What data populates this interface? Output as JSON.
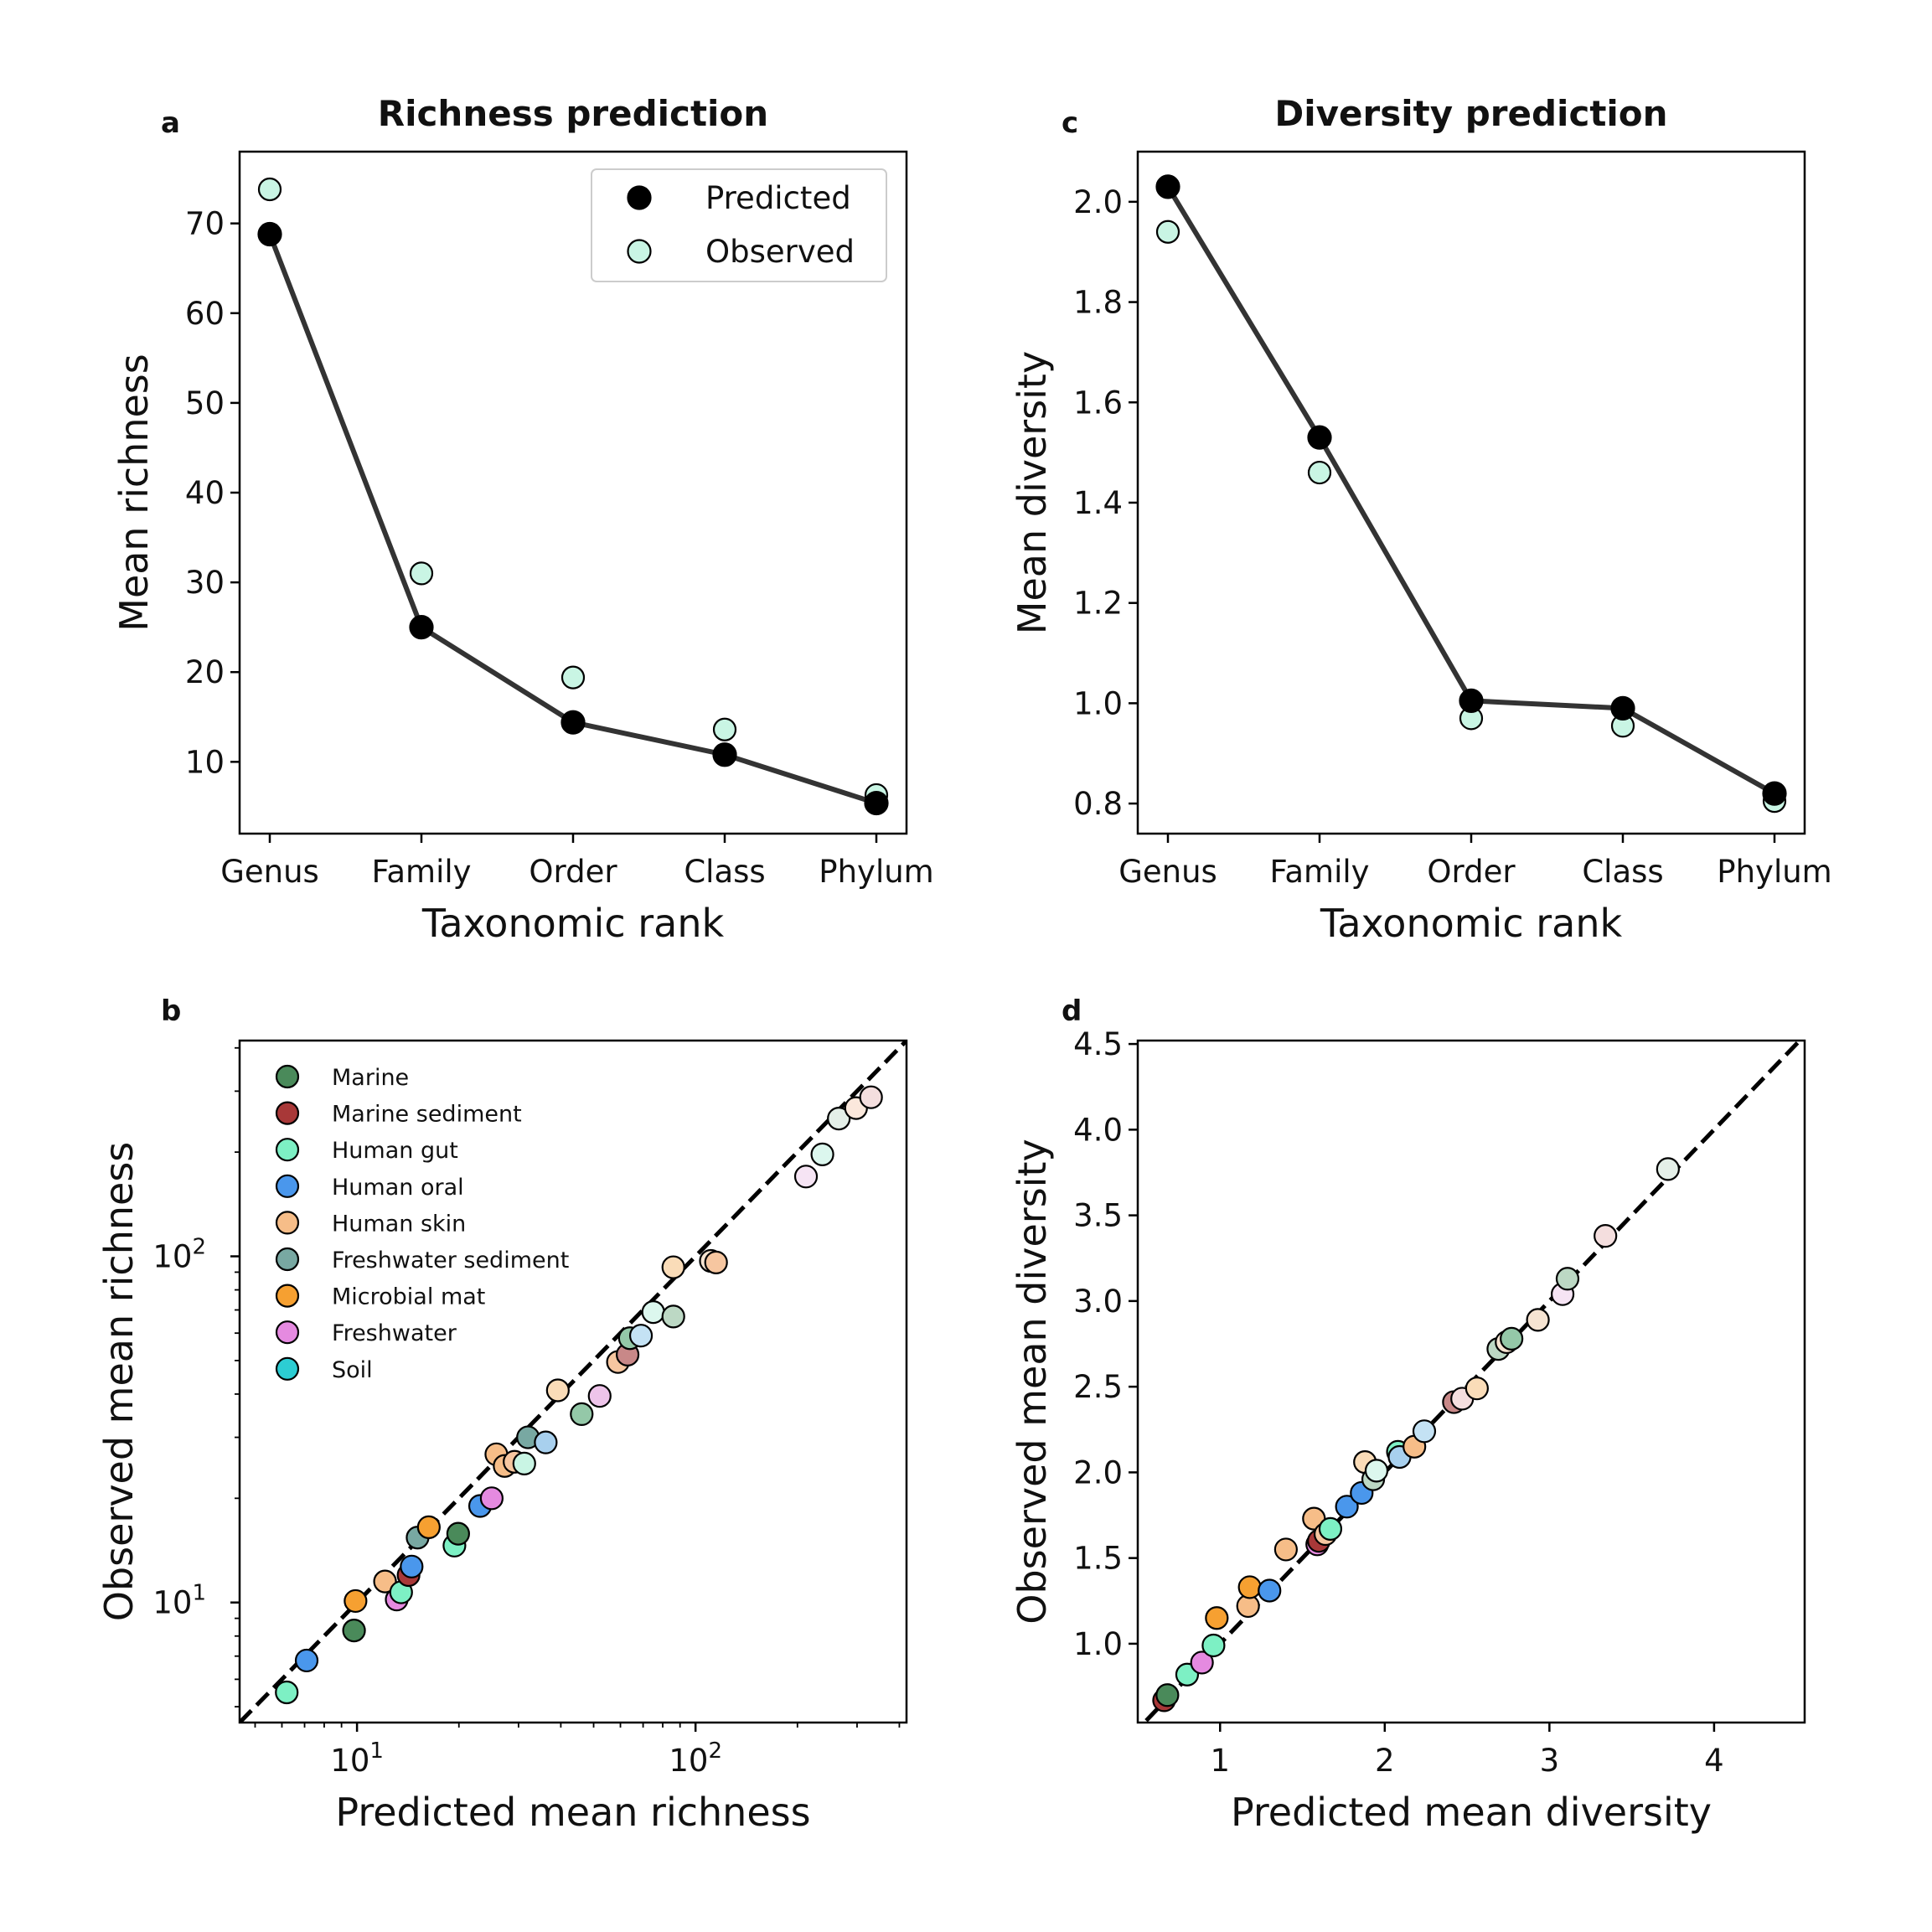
{
  "chart_data": [
    {
      "id": "a",
      "panel_label": "a",
      "type": "line",
      "title": "Richness prediction",
      "xlabel": "Taxonomic rank",
      "ylabel": "Mean richness",
      "categories": [
        "Genus",
        "Family",
        "Order",
        "Class",
        "Phylum"
      ],
      "ylim": [
        2,
        78
      ],
      "yticks": [
        10,
        20,
        30,
        40,
        50,
        60,
        70
      ],
      "grid": false,
      "legend_position": "top-right",
      "series": [
        {
          "name": "Predicted",
          "values": [
            68.8,
            25.0,
            14.4,
            10.8,
            5.4
          ],
          "color": "#000000",
          "line": true
        },
        {
          "name": "Observed",
          "values": [
            73.8,
            31.0,
            19.4,
            13.6,
            6.3
          ],
          "color": "#c9f5e4",
          "line": false
        }
      ]
    },
    {
      "id": "c",
      "panel_label": "c",
      "type": "line",
      "title": "Diversity prediction",
      "xlabel": "Taxonomic rank",
      "ylabel": "Mean diversity",
      "categories": [
        "Genus",
        "Family",
        "Order",
        "Class",
        "Phylum"
      ],
      "ylim": [
        0.74,
        2.1
      ],
      "yticks": [
        0.8,
        1.0,
        1.2,
        1.4,
        1.6,
        1.8,
        2.0
      ],
      "grid": false,
      "series": [
        {
          "name": "Predicted",
          "values": [
            2.03,
            1.53,
            1.005,
            0.99,
            0.82
          ],
          "color": "#000000",
          "line": true
        },
        {
          "name": "Observed",
          "values": [
            1.94,
            1.46,
            0.97,
            0.955,
            0.805
          ],
          "color": "#c9f5e4",
          "line": false
        }
      ]
    },
    {
      "id": "b",
      "panel_label": "b",
      "type": "scatter",
      "xlabel": "Predicted mean richness",
      "ylabel": "Observed mean richness",
      "xscale": "log",
      "yscale": "log",
      "xlim": [
        4.5,
        420
      ],
      "ylim": [
        4.5,
        420
      ],
      "xticks": [
        {
          "value": 10,
          "base": "10",
          "exp": "1"
        },
        {
          "value": 100,
          "base": "10",
          "exp": "2"
        }
      ],
      "yticks": [
        {
          "value": 10,
          "base": "10",
          "exp": "1"
        },
        {
          "value": 100,
          "base": "10",
          "exp": "2"
        }
      ],
      "reference_line": "y = x (dashed)",
      "grid": false,
      "legend_position": "top-left",
      "legend": [
        {
          "name": "Marine",
          "color": "#4a8a5a"
        },
        {
          "name": "Marine sediment",
          "color": "#a83838"
        },
        {
          "name": "Human gut",
          "color": "#7df0c4"
        },
        {
          "name": "Human oral",
          "color": "#4a97ec"
        },
        {
          "name": "Human skin",
          "color": "#f6bd88"
        },
        {
          "name": "Freshwater sediment",
          "color": "#78a8a2"
        },
        {
          "name": "Microbial mat",
          "color": "#f6a031"
        },
        {
          "name": "Freshwater",
          "color": "#e58ae0"
        },
        {
          "name": "Soil",
          "color": "#2ccdd3"
        }
      ],
      "points": [
        {
          "x": 6.2,
          "y": 5.5,
          "color": "#7df0c4"
        },
        {
          "x": 7.1,
          "y": 6.8,
          "color": "#4a97ec"
        },
        {
          "x": 9.8,
          "y": 8.3,
          "color": "#4a8a5a"
        },
        {
          "x": 9.9,
          "y": 10.1,
          "color": "#f6a031"
        },
        {
          "x": 12.1,
          "y": 11.5,
          "color": "#f6bd88"
        },
        {
          "x": 13.1,
          "y": 10.2,
          "color": "#e58ae0"
        },
        {
          "x": 13.5,
          "y": 10.7,
          "color": "#7df0c4"
        },
        {
          "x": 14.2,
          "y": 12.0,
          "color": "#a83838"
        },
        {
          "x": 14.5,
          "y": 12.7,
          "color": "#4a97ec"
        },
        {
          "x": 15.1,
          "y": 15.4,
          "color": "#78a8a2"
        },
        {
          "x": 16.3,
          "y": 16.5,
          "color": "#f6a031"
        },
        {
          "x": 19.4,
          "y": 14.6,
          "color": "#7df0c4"
        },
        {
          "x": 19.9,
          "y": 15.8,
          "color": "#4a8a5a"
        },
        {
          "x": 23.1,
          "y": 19.0,
          "color": "#4a97ec"
        },
        {
          "x": 25.0,
          "y": 20.0,
          "color": "#e58ae0"
        },
        {
          "x": 25.8,
          "y": 26.8,
          "color": "#f6bd88"
        },
        {
          "x": 27.3,
          "y": 24.8,
          "color": "#f6bd88"
        },
        {
          "x": 29.2,
          "y": 25.5,
          "color": "#f6c6a0"
        },
        {
          "x": 31.2,
          "y": 25.2,
          "color": "#c9f5e4"
        },
        {
          "x": 32.0,
          "y": 30.0,
          "color": "#78a8a2"
        },
        {
          "x": 36.1,
          "y": 29.0,
          "color": "#a8d0ee"
        },
        {
          "x": 39.2,
          "y": 41.0,
          "color": "#fadcb8"
        },
        {
          "x": 46.1,
          "y": 35.0,
          "color": "#94c8a8"
        },
        {
          "x": 52.1,
          "y": 39.5,
          "color": "#eec4ea"
        },
        {
          "x": 59.0,
          "y": 49.5,
          "color": "#f6c6a0"
        },
        {
          "x": 63.0,
          "y": 52.0,
          "color": "#c88888"
        },
        {
          "x": 64.0,
          "y": 58.0,
          "color": "#94c8a8"
        },
        {
          "x": 69.0,
          "y": 59.0,
          "color": "#c4e2f4"
        },
        {
          "x": 75.0,
          "y": 69.0,
          "color": "#dcf7ee"
        },
        {
          "x": 86.0,
          "y": 67.0,
          "color": "#bcd8c4"
        },
        {
          "x": 86.0,
          "y": 93.0,
          "color": "#fadcb8"
        },
        {
          "x": 111.0,
          "y": 97.0,
          "color": "#f6e4d2"
        },
        {
          "x": 115.0,
          "y": 96.0,
          "color": "#f6c6a0"
        },
        {
          "x": 212.0,
          "y": 170.0,
          "color": "#f6e4f4"
        },
        {
          "x": 237.0,
          "y": 197.0,
          "color": "#dcf7ee"
        },
        {
          "x": 265.0,
          "y": 250.0,
          "color": "#e4efe8"
        },
        {
          "x": 298.0,
          "y": 268.0,
          "color": "#fbe8dc"
        },
        {
          "x": 330.0,
          "y": 288.0,
          "color": "#f4dede"
        }
      ]
    },
    {
      "id": "d",
      "panel_label": "d",
      "type": "scatter",
      "xlabel": "Predicted mean diversity",
      "ylabel": "Observed mean diversity",
      "xlim": [
        0.5,
        4.55
      ],
      "ylim": [
        0.54,
        4.52
      ],
      "xticks": [
        1,
        2,
        3,
        4
      ],
      "yticks": [
        1.0,
        1.5,
        2.0,
        2.5,
        3.0,
        3.5,
        4.0,
        4.5
      ],
      "reference_line": "y = x (dashed)",
      "grid": false,
      "points": [
        {
          "x": 0.66,
          "y": 0.67,
          "color": "#a83838"
        },
        {
          "x": 0.68,
          "y": 0.7,
          "color": "#4a8a5a"
        },
        {
          "x": 0.8,
          "y": 0.82,
          "color": "#7df0c4"
        },
        {
          "x": 0.89,
          "y": 0.89,
          "color": "#e58ae0"
        },
        {
          "x": 0.96,
          "y": 0.99,
          "color": "#7df0c4"
        },
        {
          "x": 0.98,
          "y": 1.15,
          "color": "#f6a031"
        },
        {
          "x": 1.17,
          "y": 1.22,
          "color": "#f6bd88"
        },
        {
          "x": 1.18,
          "y": 1.33,
          "color": "#f6a031"
        },
        {
          "x": 1.3,
          "y": 1.31,
          "color": "#4a97ec"
        },
        {
          "x": 1.4,
          "y": 1.55,
          "color": "#f6bd88"
        },
        {
          "x": 1.57,
          "y": 1.73,
          "color": "#f6bd88"
        },
        {
          "x": 1.59,
          "y": 1.58,
          "color": "#e58ae0"
        },
        {
          "x": 1.6,
          "y": 1.6,
          "color": "#a83838"
        },
        {
          "x": 1.64,
          "y": 1.64,
          "color": "#f6c6a0"
        },
        {
          "x": 1.67,
          "y": 1.67,
          "color": "#7df0c4"
        },
        {
          "x": 1.77,
          "y": 1.8,
          "color": "#4a97ec"
        },
        {
          "x": 1.86,
          "y": 1.88,
          "color": "#4a97ec"
        },
        {
          "x": 1.88,
          "y": 2.06,
          "color": "#fadcb8"
        },
        {
          "x": 1.93,
          "y": 1.96,
          "color": "#bcd8c4"
        },
        {
          "x": 1.95,
          "y": 2.01,
          "color": "#dcf7ee"
        },
        {
          "x": 2.08,
          "y": 2.12,
          "color": "#7df0c4"
        },
        {
          "x": 2.09,
          "y": 2.09,
          "color": "#a8d0ee"
        },
        {
          "x": 2.18,
          "y": 2.15,
          "color": "#f6bd88"
        },
        {
          "x": 2.24,
          "y": 2.24,
          "color": "#c4e2f4"
        },
        {
          "x": 2.42,
          "y": 2.41,
          "color": "#c88888"
        },
        {
          "x": 2.47,
          "y": 2.43,
          "color": "#f4dede"
        },
        {
          "x": 2.56,
          "y": 2.49,
          "color": "#fadcb8"
        },
        {
          "x": 2.69,
          "y": 2.72,
          "color": "#bcd8c4"
        },
        {
          "x": 2.74,
          "y": 2.76,
          "color": "#f6e4d2"
        },
        {
          "x": 2.77,
          "y": 2.78,
          "color": "#94c8a8"
        },
        {
          "x": 2.93,
          "y": 2.89,
          "color": "#f6e4d2"
        },
        {
          "x": 3.08,
          "y": 3.04,
          "color": "#f6e4f4"
        },
        {
          "x": 3.11,
          "y": 3.13,
          "color": "#bcd8c4"
        },
        {
          "x": 3.34,
          "y": 3.38,
          "color": "#f4dede"
        },
        {
          "x": 3.72,
          "y": 3.77,
          "color": "#e4efe8"
        }
      ]
    }
  ]
}
